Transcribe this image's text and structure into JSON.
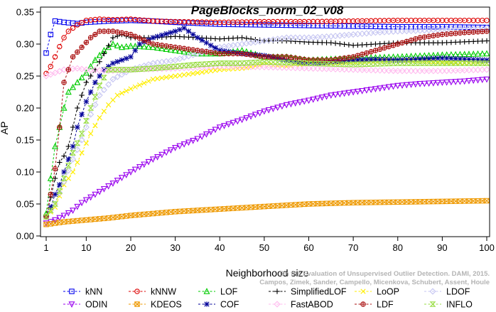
{
  "chart_data": {
    "type": "line",
    "title": "PageBlocks_norm_02_v08",
    "xlabel": "Neighborhood size",
    "ylabel": "AP",
    "xlim": [
      1,
      100
    ],
    "ylim": [
      0,
      0.35
    ],
    "xticks": [
      1,
      10,
      20,
      30,
      40,
      50,
      60,
      70,
      80,
      90,
      100
    ],
    "yticks": [
      0.0,
      0.05,
      0.1,
      0.15,
      0.2,
      0.25,
      0.3,
      0.35
    ],
    "xtick_labels": [
      "1",
      "10",
      "20",
      "30",
      "40",
      "50",
      "60",
      "70",
      "80",
      "90",
      "100"
    ],
    "ytick_labels": [
      "0.00",
      "0.05",
      "0.10",
      "0.15",
      "0.20",
      "0.25",
      "0.30",
      "0.35"
    ],
    "grid": false,
    "legend_position": "bottom",
    "watermark": {
      "line1": "Campos, Zimek, Sander, Campello, Micenkova, Schubert, Assent, Houle",
      "line2": "On the Evaluation of Unsupervised Outlier Detection. DAMI, 2015."
    },
    "series": [
      {
        "name": "kNN",
        "color": "#0000ee",
        "marker": "square",
        "points": [
          [
            1,
            0.286
          ],
          [
            2,
            0.315
          ],
          [
            3,
            0.336
          ],
          [
            5,
            0.334
          ],
          [
            8,
            0.332
          ],
          [
            10,
            0.334
          ],
          [
            15,
            0.336
          ],
          [
            20,
            0.337
          ],
          [
            25,
            0.336
          ],
          [
            30,
            0.334
          ],
          [
            40,
            0.331
          ],
          [
            50,
            0.33
          ],
          [
            60,
            0.329
          ],
          [
            70,
            0.328
          ],
          [
            80,
            0.327
          ],
          [
            90,
            0.327
          ],
          [
            100,
            0.326
          ]
        ]
      },
      {
        "name": "kNNW",
        "color": "#dd0000",
        "marker": "circle",
        "points": [
          [
            1,
            0.254
          ],
          [
            2,
            0.265
          ],
          [
            3,
            0.28
          ],
          [
            4,
            0.296
          ],
          [
            5,
            0.31
          ],
          [
            6,
            0.32
          ],
          [
            8,
            0.33
          ],
          [
            10,
            0.337
          ],
          [
            13,
            0.339
          ],
          [
            16,
            0.338
          ],
          [
            20,
            0.339
          ],
          [
            25,
            0.336
          ],
          [
            30,
            0.335
          ],
          [
            40,
            0.334
          ],
          [
            50,
            0.335
          ],
          [
            60,
            0.335
          ],
          [
            70,
            0.336
          ],
          [
            80,
            0.337
          ],
          [
            90,
            0.337
          ],
          [
            100,
            0.337
          ]
        ]
      },
      {
        "name": "LOF",
        "color": "#00cc00",
        "marker": "triangle",
        "points": [
          [
            1,
            0.035
          ],
          [
            2,
            0.09
          ],
          [
            3,
            0.14
          ],
          [
            4,
            0.17
          ],
          [
            5,
            0.2
          ],
          [
            6,
            0.225
          ],
          [
            8,
            0.24
          ],
          [
            10,
            0.255
          ],
          [
            12,
            0.275
          ],
          [
            14,
            0.29
          ],
          [
            16,
            0.3
          ],
          [
            18,
            0.295
          ],
          [
            20,
            0.297
          ],
          [
            25,
            0.295
          ],
          [
            30,
            0.29
          ],
          [
            35,
            0.285
          ],
          [
            40,
            0.285
          ],
          [
            45,
            0.29
          ],
          [
            50,
            0.28
          ],
          [
            55,
            0.28
          ],
          [
            60,
            0.275
          ],
          [
            70,
            0.278
          ],
          [
            80,
            0.28
          ],
          [
            90,
            0.283
          ],
          [
            100,
            0.285
          ]
        ]
      },
      {
        "name": "SimplifiedLOF",
        "color": "#000000",
        "marker": "plus",
        "points": [
          [
            1,
            0.03
          ],
          [
            2,
            0.06
          ],
          [
            3,
            0.09
          ],
          [
            4,
            0.115
          ],
          [
            5,
            0.125
          ],
          [
            6,
            0.14
          ],
          [
            7,
            0.17
          ],
          [
            8,
            0.2
          ],
          [
            10,
            0.24
          ],
          [
            12,
            0.26
          ],
          [
            14,
            0.285
          ],
          [
            16,
            0.31
          ],
          [
            18,
            0.315
          ],
          [
            20,
            0.31
          ],
          [
            25,
            0.31
          ],
          [
            30,
            0.312
          ],
          [
            35,
            0.31
          ],
          [
            40,
            0.308
          ],
          [
            45,
            0.31
          ],
          [
            50,
            0.305
          ],
          [
            55,
            0.305
          ],
          [
            60,
            0.303
          ],
          [
            65,
            0.302
          ],
          [
            70,
            0.298
          ],
          [
            75,
            0.3
          ],
          [
            80,
            0.302
          ],
          [
            90,
            0.302
          ],
          [
            100,
            0.305
          ]
        ]
      },
      {
        "name": "LoOP",
        "color": "#ffee00",
        "marker": "x",
        "points": [
          [
            1,
            0.03
          ],
          [
            3,
            0.045
          ],
          [
            5,
            0.08
          ],
          [
            7,
            0.1
          ],
          [
            9,
            0.13
          ],
          [
            11,
            0.16
          ],
          [
            13,
            0.185
          ],
          [
            15,
            0.205
          ],
          [
            17,
            0.22
          ],
          [
            20,
            0.23
          ],
          [
            25,
            0.245
          ],
          [
            30,
            0.25
          ],
          [
            35,
            0.255
          ],
          [
            40,
            0.26
          ],
          [
            45,
            0.262
          ],
          [
            50,
            0.268
          ],
          [
            55,
            0.265
          ],
          [
            60,
            0.27
          ],
          [
            70,
            0.272
          ],
          [
            80,
            0.275
          ],
          [
            90,
            0.272
          ],
          [
            100,
            0.27
          ]
        ]
      },
      {
        "name": "LDOF",
        "color": "#c6c6f2",
        "marker": "diamond",
        "points": [
          [
            1,
            0.03
          ],
          [
            3,
            0.05
          ],
          [
            5,
            0.085
          ],
          [
            7,
            0.12
          ],
          [
            9,
            0.15
          ],
          [
            11,
            0.19
          ],
          [
            13,
            0.22
          ],
          [
            16,
            0.245
          ],
          [
            20,
            0.26
          ],
          [
            25,
            0.27
          ],
          [
            30,
            0.275
          ],
          [
            35,
            0.285
          ],
          [
            40,
            0.295
          ],
          [
            45,
            0.3
          ],
          [
            50,
            0.305
          ],
          [
            55,
            0.31
          ],
          [
            60,
            0.31
          ],
          [
            65,
            0.312
          ],
          [
            70,
            0.315
          ],
          [
            75,
            0.318
          ],
          [
            80,
            0.32
          ],
          [
            85,
            0.321
          ],
          [
            90,
            0.323
          ],
          [
            100,
            0.325
          ]
        ]
      },
      {
        "name": "ODIN",
        "color": "#9900ee",
        "marker": "triangle-down",
        "points": [
          [
            1,
            0.02
          ],
          [
            3,
            0.025
          ],
          [
            5,
            0.032
          ],
          [
            7,
            0.04
          ],
          [
            9,
            0.052
          ],
          [
            12,
            0.065
          ],
          [
            15,
            0.078
          ],
          [
            20,
            0.1
          ],
          [
            25,
            0.12
          ],
          [
            30,
            0.138
          ],
          [
            35,
            0.152
          ],
          [
            40,
            0.17
          ],
          [
            45,
            0.182
          ],
          [
            50,
            0.195
          ],
          [
            55,
            0.205
          ],
          [
            60,
            0.212
          ],
          [
            65,
            0.22
          ],
          [
            70,
            0.225
          ],
          [
            75,
            0.23
          ],
          [
            80,
            0.235
          ],
          [
            85,
            0.238
          ],
          [
            90,
            0.24
          ],
          [
            95,
            0.242
          ],
          [
            100,
            0.245
          ]
        ]
      },
      {
        "name": "KDEOS",
        "color": "#ee9900",
        "marker": "square-x",
        "points": [
          [
            1,
            0.018
          ],
          [
            5,
            0.022
          ],
          [
            10,
            0.025
          ],
          [
            15,
            0.028
          ],
          [
            20,
            0.032
          ],
          [
            25,
            0.035
          ],
          [
            30,
            0.038
          ],
          [
            40,
            0.042
          ],
          [
            50,
            0.046
          ],
          [
            60,
            0.05
          ],
          [
            70,
            0.052
          ],
          [
            80,
            0.053
          ],
          [
            90,
            0.054
          ],
          [
            100,
            0.055
          ]
        ]
      },
      {
        "name": "COF",
        "color": "#000099",
        "marker": "star",
        "points": [
          [
            1,
            0.03
          ],
          [
            2,
            0.045
          ],
          [
            3,
            0.065
          ],
          [
            4,
            0.08
          ],
          [
            5,
            0.1
          ],
          [
            6,
            0.12
          ],
          [
            7,
            0.14
          ],
          [
            8,
            0.17
          ],
          [
            9,
            0.19
          ],
          [
            10,
            0.21
          ],
          [
            12,
            0.24
          ],
          [
            14,
            0.26
          ],
          [
            16,
            0.27
          ],
          [
            20,
            0.28
          ],
          [
            22,
            0.3
          ],
          [
            25,
            0.31
          ],
          [
            30,
            0.32
          ],
          [
            32,
            0.325
          ],
          [
            35,
            0.31
          ],
          [
            40,
            0.29
          ],
          [
            45,
            0.285
          ],
          [
            50,
            0.282
          ],
          [
            55,
            0.275
          ],
          [
            60,
            0.27
          ],
          [
            65,
            0.272
          ],
          [
            70,
            0.275
          ],
          [
            75,
            0.276
          ],
          [
            80,
            0.275
          ],
          [
            90,
            0.278
          ],
          [
            100,
            0.275
          ]
        ]
      },
      {
        "name": "FastABOD",
        "color": "#ffbbee",
        "marker": "diamond",
        "points": [
          [
            1,
            0.25
          ],
          [
            3,
            0.255
          ],
          [
            5,
            0.26
          ],
          [
            8,
            0.262
          ],
          [
            10,
            0.26
          ],
          [
            15,
            0.258
          ],
          [
            20,
            0.26
          ],
          [
            30,
            0.262
          ],
          [
            40,
            0.265
          ],
          [
            50,
            0.264
          ],
          [
            60,
            0.262
          ],
          [
            70,
            0.26
          ],
          [
            80,
            0.258
          ],
          [
            90,
            0.258
          ],
          [
            100,
            0.26
          ]
        ]
      },
      {
        "name": "LDF",
        "color": "#aa1111",
        "marker": "circle-plus",
        "points": [
          [
            1,
            0.03
          ],
          [
            2,
            0.065
          ],
          [
            3,
            0.105
          ],
          [
            4,
            0.17
          ],
          [
            5,
            0.24
          ],
          [
            6,
            0.26
          ],
          [
            7,
            0.28
          ],
          [
            9,
            0.295
          ],
          [
            11,
            0.31
          ],
          [
            13,
            0.32
          ],
          [
            16,
            0.32
          ],
          [
            20,
            0.315
          ],
          [
            25,
            0.3
          ],
          [
            30,
            0.295
          ],
          [
            35,
            0.29
          ],
          [
            40,
            0.285
          ],
          [
            45,
            0.285
          ],
          [
            50,
            0.28
          ],
          [
            55,
            0.28
          ],
          [
            60,
            0.275
          ],
          [
            65,
            0.275
          ],
          [
            70,
            0.28
          ],
          [
            75,
            0.29
          ],
          [
            80,
            0.3
          ],
          [
            85,
            0.31
          ],
          [
            90,
            0.315
          ],
          [
            95,
            0.318
          ],
          [
            100,
            0.32
          ]
        ]
      },
      {
        "name": "INFLO",
        "color": "#99dd44",
        "marker": "hourglass",
        "points": [
          [
            1,
            0.03
          ],
          [
            3,
            0.05
          ],
          [
            5,
            0.09
          ],
          [
            7,
            0.13
          ],
          [
            9,
            0.16
          ],
          [
            11,
            0.2
          ],
          [
            13,
            0.235
          ],
          [
            15,
            0.26
          ],
          [
            20,
            0.26
          ],
          [
            25,
            0.262
          ],
          [
            30,
            0.265
          ],
          [
            35,
            0.268
          ],
          [
            40,
            0.27
          ],
          [
            45,
            0.27
          ],
          [
            50,
            0.272
          ],
          [
            60,
            0.27
          ],
          [
            70,
            0.268
          ],
          [
            80,
            0.27
          ],
          [
            90,
            0.27
          ],
          [
            100,
            0.27
          ]
        ]
      }
    ]
  }
}
